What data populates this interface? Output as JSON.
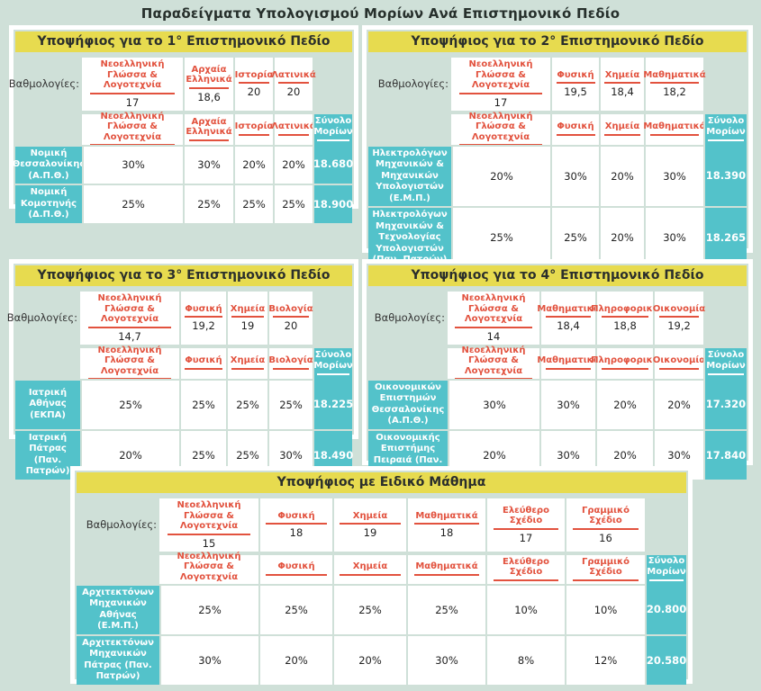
{
  "page_title": "Παραδείγματα Υπολογισμού Μορίων Ανά Επιστημονικό Πεδίο",
  "labels": {
    "grades": "Βαθμολογίες:",
    "total": "Σύνολο Μορίων"
  },
  "colors": {
    "background": "#cfe0d8",
    "header_yellow": "#e7db4f",
    "teal": "#53c2ca",
    "subject_red": "#e2523e",
    "text_dark": "#2d2d2d",
    "frame_white": "#ffffff"
  },
  "tables": [
    {
      "title": "Υποψήφιος για το 1° Επιστημονικό Πεδίο",
      "subjects": [
        "Νεοελληνική Γλώσσα & Λογοτεχνία",
        "Αρχαία Ελληνικά",
        "Ιστορία",
        "Λατινικά"
      ],
      "grades": [
        "17",
        "18,6",
        "20",
        "20"
      ],
      "rows": [
        {
          "school": "Νομική Θεσσαλονίκης (Α.Π.Θ.)",
          "weights": [
            "30%",
            "30%",
            "20%",
            "20%"
          ],
          "total": "18.680"
        },
        {
          "school": "Νομική Κομοτηνής (Δ.Π.Θ.)",
          "weights": [
            "25%",
            "25%",
            "25%",
            "25%"
          ],
          "total": "18.900"
        }
      ]
    },
    {
      "title": "Υποψήφιος για το 2° Επιστημονικό Πεδίο",
      "subjects": [
        "Νεοελληνική Γλώσσα & Λογοτεχνία",
        "Φυσική",
        "Χημεία",
        "Μαθηματικά"
      ],
      "grades": [
        "17",
        "19,5",
        "18,4",
        "18,2"
      ],
      "rows": [
        {
          "school": "Ηλεκτρολόγων Μηχανικών & Μηχανικών Υπολογιστών (Ε.Μ.Π.)",
          "weights": [
            "20%",
            "30%",
            "20%",
            "30%"
          ],
          "total": "18.390"
        },
        {
          "school": "Ηλεκτρολόγων Μηχανικών & Τεχνολογίας Υπολογιστών (Παν. Πατρών)",
          "weights": [
            "25%",
            "25%",
            "20%",
            "30%"
          ],
          "total": "18.265"
        }
      ]
    },
    {
      "title": "Υποψήφιος για το 3° Επιστημονικό Πεδίο",
      "subjects": [
        "Νεοελληνική Γλώσσα & Λογοτεχνία",
        "Φυσική",
        "Χημεία",
        "Βιολογία"
      ],
      "grades": [
        "14,7",
        "19,2",
        "19",
        "20"
      ],
      "rows": [
        {
          "school": "Ιατρική Αθήνας (ΕΚΠΑ)",
          "weights": [
            "25%",
            "25%",
            "25%",
            "25%"
          ],
          "total": "18.225"
        },
        {
          "school": "Ιατρική Πάτρας (Παν. Πατρών)",
          "weights": [
            "20%",
            "25%",
            "25%",
            "30%"
          ],
          "total": "18.490"
        }
      ]
    },
    {
      "title": "Υποψήφιος για το 4° Επιστημονικό Πεδίο",
      "subjects": [
        "Νεοελληνική Γλώσσα & Λογοτεχνία",
        "Μαθηματικά",
        "Πληροφορική",
        "Οικονομία"
      ],
      "grades": [
        "14",
        "18,4",
        "18,8",
        "19,2"
      ],
      "rows": [
        {
          "school": "Οικονομικών Επιστημών Θεσσαλονίκης (Α.Π.Θ.)",
          "weights": [
            "30%",
            "30%",
            "20%",
            "20%"
          ],
          "total": "17.320"
        },
        {
          "school": "Οικονομικής Επιστήμης Πειραιά (Παν. Πειραιά)",
          "weights": [
            "20%",
            "30%",
            "20%",
            "30%"
          ],
          "total": "17.840"
        }
      ]
    },
    {
      "title": "Υποψήφιος με Ειδικό Μάθημα",
      "subjects": [
        "Νεοελληνική Γλώσσα & Λογοτεχνία",
        "Φυσική",
        "Χημεία",
        "Μαθηματικά",
        "Ελεύθερο Σχέδιο",
        "Γραμμικό Σχέδιο"
      ],
      "grades": [
        "15",
        "18",
        "19",
        "18",
        "17",
        "16"
      ],
      "rows": [
        {
          "school": "Αρχιτεκτόνων Μηχανικών Αθήνας (Ε.Μ.Π.)",
          "weights": [
            "25%",
            "25%",
            "25%",
            "25%",
            "10%",
            "10%"
          ],
          "total": "20.800"
        },
        {
          "school": "Αρχιτεκτόνων Μηχανικών Πάτρας (Παν. Πατρών)",
          "weights": [
            "30%",
            "20%",
            "20%",
            "30%",
            "8%",
            "12%"
          ],
          "total": "20.580"
        }
      ]
    }
  ]
}
